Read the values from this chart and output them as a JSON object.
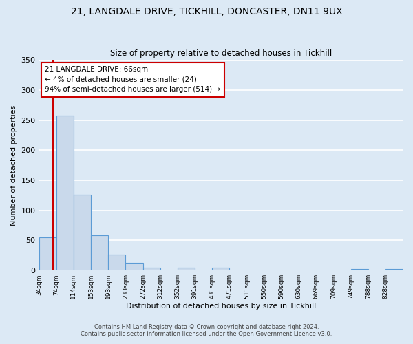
{
  "title1": "21, LANGDALE DRIVE, TICKHILL, DONCASTER, DN11 9UX",
  "title2": "Size of property relative to detached houses in Tickhill",
  "xlabel": "Distribution of detached houses by size in Tickhill",
  "ylabel": "Number of detached properties",
  "footer1": "Contains HM Land Registry data © Crown copyright and database right 2024.",
  "footer2": "Contains public sector information licensed under the Open Government Licence v3.0.",
  "bin_labels": [
    "34sqm",
    "74sqm",
    "114sqm",
    "153sqm",
    "193sqm",
    "233sqm",
    "272sqm",
    "312sqm",
    "352sqm",
    "391sqm",
    "431sqm",
    "471sqm",
    "511sqm",
    "550sqm",
    "590sqm",
    "630sqm",
    "669sqm",
    "709sqm",
    "749sqm",
    "788sqm",
    "828sqm"
  ],
  "bar_heights": [
    55,
    257,
    126,
    58,
    26,
    13,
    5,
    0,
    5,
    0,
    5,
    0,
    0,
    0,
    0,
    0,
    0,
    0,
    3,
    0,
    2
  ],
  "bar_color": "#c9d9eb",
  "bar_edge_color": "#5b9bd5",
  "background_color": "#dce9f5",
  "plot_bg_color": "#dce9f5",
  "annotation_text": "21 LANGDALE DRIVE: 66sqm\n← 4% of detached houses are smaller (24)\n94% of semi-detached houses are larger (514) →",
  "annotation_box_color": "#ffffff",
  "annotation_box_edge": "#cc0000",
  "ylim": [
    0,
    350
  ],
  "yticks": [
    0,
    50,
    100,
    150,
    200,
    250,
    300,
    350
  ],
  "property_sqm": 66,
  "bin_min": 34,
  "bin_max": 74
}
